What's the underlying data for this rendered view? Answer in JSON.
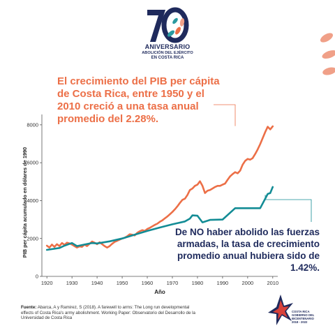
{
  "logo": {
    "number": "70",
    "line1": "ANIVERSARIO",
    "line2": "ABOLICIÓN DEL EJÉRCITO",
    "line3": "EN COSTA RICA"
  },
  "headline": "El crecimiento del PIB per cápita de Costa Rica, entre 1950 y el 2010 creció a una tasa anual promedio del 2.28%.",
  "annotation": "De NO haber abolido las fuerzas armadas, la tasa de crecimiento promedio anual hubiera sido de 1.42%.",
  "source": {
    "label": "Fuente:",
    "text": "Abarca, A y Ramirez, S (2018). A farewell to arms: The Long run developmental effects of Costa Rica's army abolishment. Working Paper: Observatorio del Desarrollo de la Universidad de Costa Rica"
  },
  "footer_logo": {
    "line1": "COSTA RICA",
    "line2": "GOBIERNO DEL BICENTENARIO",
    "line3": "2018 - 2022"
  },
  "colors": {
    "actual": "#ec6f47",
    "counterfactual": "#138c95",
    "title": "#ec6f47",
    "annotation": "#1e2a5c"
  },
  "chart_data": {
    "type": "line",
    "title": "",
    "xlabel": "Año",
    "ylabel": "PIB per cápita acumulado en dólares de 1990",
    "xlim": [
      1918,
      2012
    ],
    "ylim": [
      0,
      8400
    ],
    "xticks": [
      1920,
      1930,
      1940,
      1950,
      1960,
      1970,
      1980,
      1990,
      2000,
      2010
    ],
    "yticks": [
      0,
      2000,
      4000,
      6000,
      8000
    ],
    "grid": false,
    "series": [
      {
        "name": "",
        "color": "#ec6f47",
        "x": [
          1920,
          1921,
          1922,
          1923,
          1924,
          1925,
          1926,
          1927,
          1928,
          1929,
          1930,
          1931,
          1932,
          1933,
          1934,
          1935,
          1936,
          1937,
          1938,
          1939,
          1940,
          1941,
          1942,
          1943,
          1944,
          1945,
          1946,
          1947,
          1948,
          1949,
          1950,
          1951,
          1952,
          1953,
          1954,
          1955,
          1956,
          1957,
          1958,
          1959,
          1960,
          1961,
          1962,
          1963,
          1964,
          1965,
          1966,
          1967,
          1968,
          1969,
          1970,
          1971,
          1972,
          1973,
          1974,
          1975,
          1976,
          1977,
          1978,
          1979,
          1980,
          1981,
          1982,
          1983,
          1984,
          1985,
          1986,
          1987,
          1988,
          1989,
          1990,
          1991,
          1992,
          1993,
          1994,
          1995,
          1996,
          1997,
          1998,
          1999,
          2000,
          2001,
          2002,
          2003,
          2004,
          2005,
          2006,
          2007,
          2008,
          2009,
          2010
        ],
        "y": [
          1620,
          1520,
          1680,
          1560,
          1700,
          1600,
          1760,
          1660,
          1780,
          1740,
          1680,
          1600,
          1520,
          1580,
          1560,
          1680,
          1600,
          1720,
          1840,
          1780,
          1700,
          1800,
          1700,
          1600,
          1520,
          1600,
          1720,
          1820,
          1880,
          1940,
          2000,
          2040,
          2120,
          2220,
          2200,
          2160,
          2300,
          2380,
          2440,
          2400,
          2500,
          2560,
          2640,
          2720,
          2780,
          2880,
          2960,
          3060,
          3160,
          3280,
          3400,
          3540,
          3700,
          3880,
          4040,
          4100,
          4300,
          4560,
          4640,
          4780,
          4840,
          5020,
          4780,
          4400,
          4520,
          4560,
          4640,
          4720,
          4780,
          4780,
          4840,
          4900,
          5100,
          5280,
          5400,
          5500,
          5440,
          5580,
          5900,
          6100,
          6200,
          6160,
          6240,
          6460,
          6700,
          6980,
          7300,
          7620,
          7900,
          7760,
          7920
        ]
      },
      {
        "name": "",
        "color": "#138c95",
        "x": [
          1920,
          1925,
          1927,
          1930,
          1932,
          1935,
          1938,
          1940,
          1945,
          1950,
          1955,
          1960,
          1965,
          1970,
          1975,
          1977,
          1978,
          1980,
          1982,
          1985,
          1990,
          1995,
          2000,
          2005,
          2008,
          2009,
          2010
        ],
        "y": [
          1400,
          1500,
          1620,
          1760,
          1600,
          1680,
          1760,
          1740,
          1850,
          2000,
          2200,
          2400,
          2580,
          2750,
          2900,
          3050,
          3220,
          3200,
          2850,
          2980,
          3000,
          3600,
          3600,
          3600,
          4350,
          4400,
          4720
        ]
      }
    ]
  }
}
